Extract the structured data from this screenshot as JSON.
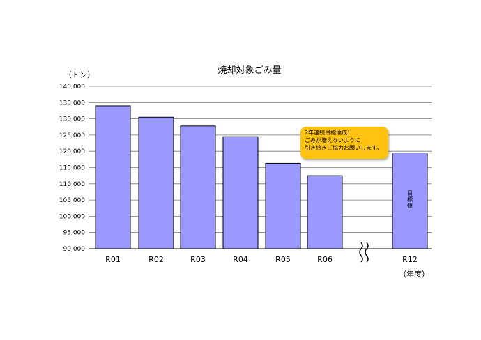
{
  "chart_data": {
    "type": "bar",
    "title": "焼却対象ごみ量",
    "ylabel": "（トン）",
    "xlabel": "（年度）",
    "ylim": [
      90000,
      140000
    ],
    "ytick_step": 5000,
    "grid": true,
    "categories": [
      "R01",
      "R02",
      "R03",
      "R04",
      "R05",
      "R06",
      "R12"
    ],
    "values": [
      134000,
      130500,
      127800,
      124500,
      116300,
      112500,
      119500
    ],
    "axis_break_between": [
      "R06",
      "R12"
    ],
    "bar_color": "#9999ff",
    "target_bar_label": "目標値"
  },
  "callout": {
    "lines": [
      "2年連続目標達成！",
      "ごみが増えないように",
      "引き続きご協力お願いします。"
    ],
    "color": "#ffc20e"
  }
}
